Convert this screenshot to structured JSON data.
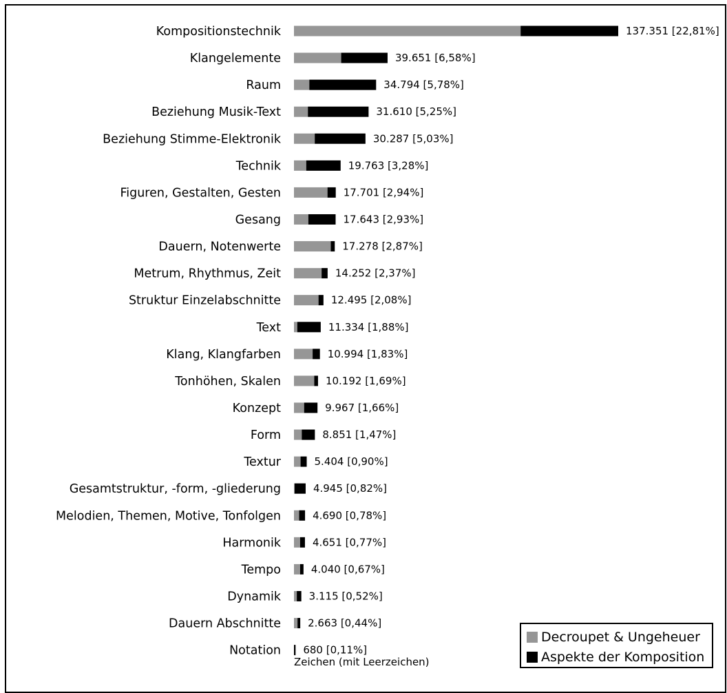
{
  "chart_data": {
    "type": "bar",
    "orientation": "horizontal",
    "stacked": true,
    "xlabel": "Zeichen (mit Leerzeichen)",
    "legend_position": "bottom-right",
    "categories": [
      "Kompositionstechnik",
      "Klangelemente",
      "Raum",
      "Beziehung Musik-Text",
      "Beziehung Stimme-Elektronik",
      "Technik",
      "Figuren, Gestalten, Gesten",
      "Gesang",
      "Dauern, Notenwerte",
      "Metrum, Rhythmus, Zeit",
      "Struktur Einzelabschnitte",
      "Text",
      "Klang, Klangfarben",
      "Tonhöhen, Skalen",
      "Konzept",
      "Form",
      "Textur",
      "Gesamtstruktur, -form, -gliederung",
      "Melodien, Themen, Motive, Tonfolgen",
      "Harmonik",
      "Tempo",
      "Dynamik",
      "Dauern Abschnitte",
      "Notation"
    ],
    "series": [
      {
        "name": "Decroupet & Ungeheuer",
        "color": "#969696",
        "values": [
          96000,
          20000,
          6500,
          5900,
          8800,
          5200,
          14200,
          6100,
          15600,
          11700,
          10400,
          1400,
          7900,
          8600,
          4300,
          3300,
          2800,
          300,
          2200,
          2600,
          2600,
          1200,
          1500,
          0
        ]
      },
      {
        "name": "Aspekte der Komposition",
        "color": "#000000",
        "values": [
          41351,
          19651,
          28294,
          25710,
          21487,
          14563,
          3501,
          11543,
          1678,
          2552,
          2095,
          9934,
          3094,
          1592,
          5667,
          5551,
          2604,
          4645,
          2490,
          2051,
          1440,
          1915,
          1163,
          680
        ]
      }
    ],
    "totals": [
      137351,
      39651,
      34794,
      31610,
      30287,
      19763,
      17701,
      17643,
      17278,
      14252,
      12495,
      11334,
      10994,
      10192,
      9967,
      8851,
      5404,
      4945,
      4690,
      4651,
      4040,
      3115,
      2663,
      680
    ],
    "value_labels": [
      "137.351 [22,81%]",
      "39.651 [6,58%]",
      "34.794 [5,78%]",
      "31.610 [5,25%]",
      "30.287 [5,03%]",
      "19.763 [3,28%]",
      "17.701 [2,94%]",
      "17.643 [2,93%]",
      "17.278 [2,87%]",
      "14.252 [2,37%]",
      "12.495 [2,08%]",
      "11.334 [1,88%]",
      "10.994 [1,83%]",
      "10.192 [1,69%]",
      "9.967 [1,66%]",
      "8.851 [1,47%]",
      "5.404 [0,90%]",
      "4.945 [0,82%]",
      "4.690 [0,78%]",
      "4.651 [0,77%]",
      "4.040 [0,67%]",
      "3.115 [0,52%]",
      "2.663 [0,44%]",
      "680 [0,11%]"
    ]
  }
}
